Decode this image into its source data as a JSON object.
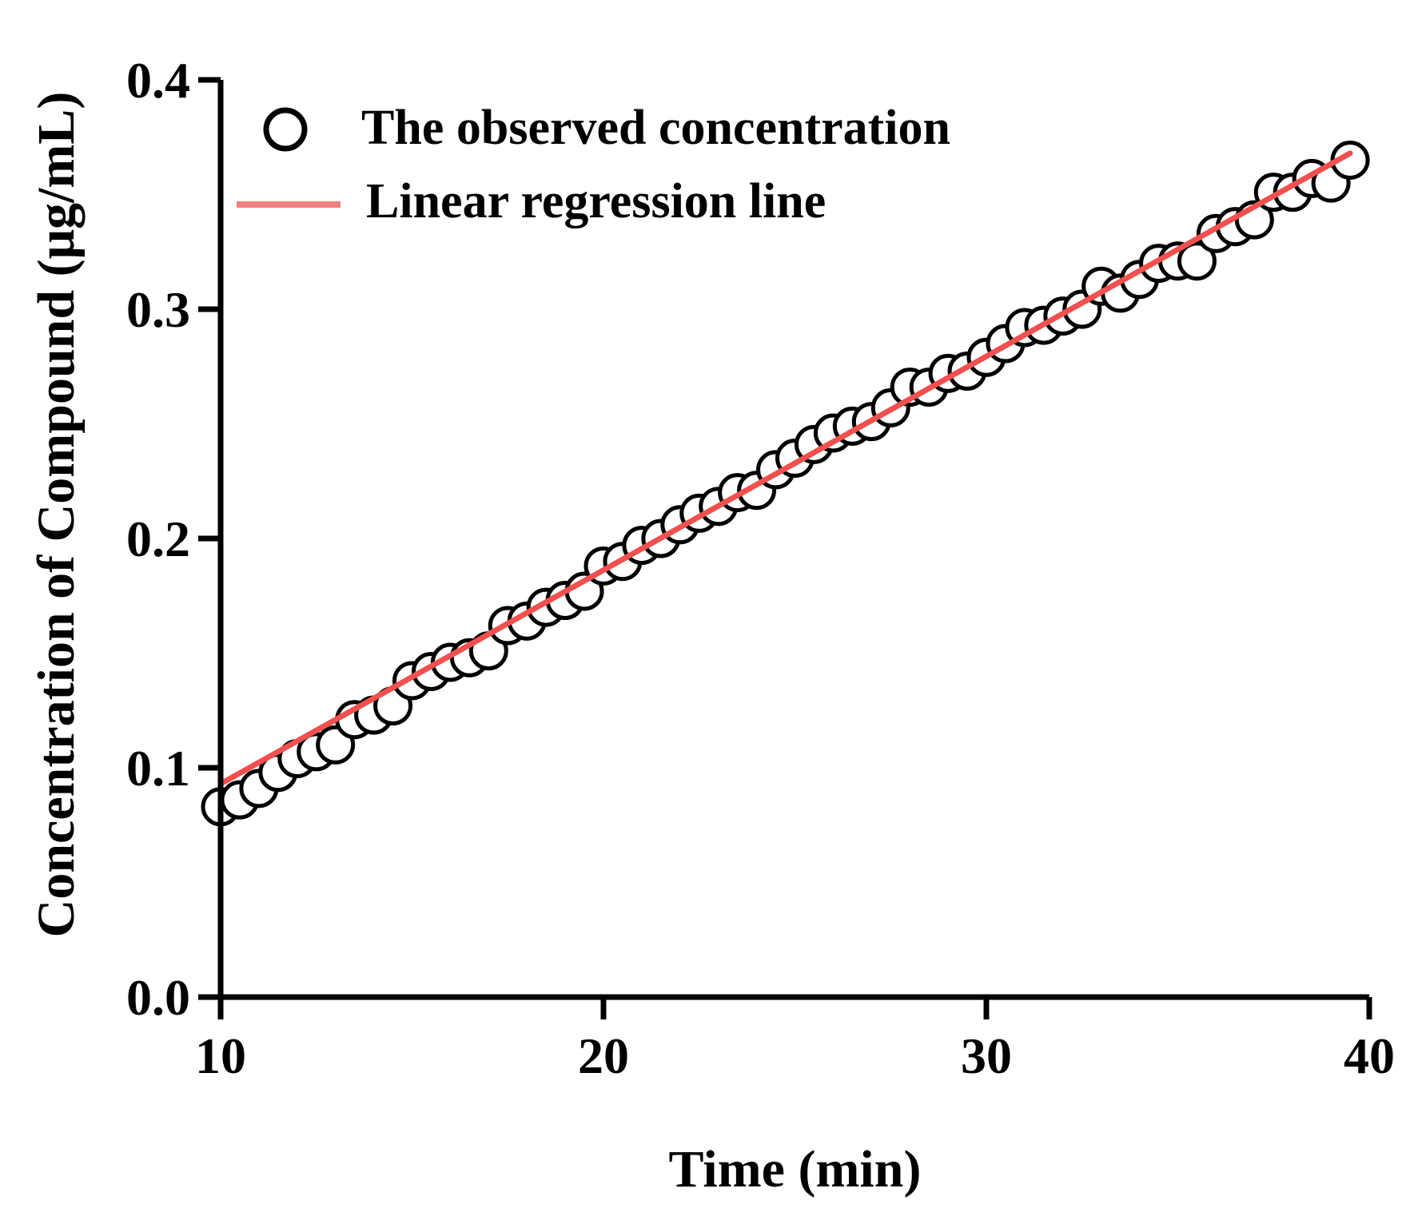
{
  "chart_data": {
    "type": "scatter",
    "title": "",
    "xlabel": "Time (min)",
    "ylabel": "Concentration of Compound (μg/mL)",
    "xlim": [
      10,
      40
    ],
    "ylim": [
      0.0,
      0.4
    ],
    "xticks": [
      10,
      20,
      30,
      40
    ],
    "xtick_labels": [
      "10",
      "20",
      "30",
      "40"
    ],
    "yticks": [
      0.0,
      0.1,
      0.2,
      0.3,
      0.4
    ],
    "ytick_labels": [
      "0.0",
      "0.1",
      "0.2",
      "0.3",
      "0.4"
    ],
    "grid": false,
    "legend_position": "top-left",
    "series": [
      {
        "name": "The observed concentration",
        "kind": "scatter",
        "marker": "open-circle",
        "color": "#000000",
        "x": [
          10.0,
          10.5,
          11.0,
          11.5,
          12.0,
          12.5,
          13.0,
          13.5,
          14.0,
          14.5,
          15.0,
          15.5,
          16.0,
          16.5,
          17.0,
          17.5,
          18.0,
          18.5,
          19.0,
          19.5,
          20.0,
          20.5,
          21.0,
          21.5,
          22.0,
          22.5,
          23.0,
          23.5,
          24.0,
          24.5,
          25.0,
          25.5,
          26.0,
          26.5,
          27.0,
          27.5,
          28.0,
          28.5,
          29.0,
          29.5,
          30.0,
          30.5,
          31.0,
          31.5,
          32.0,
          32.5,
          33.0,
          33.5,
          34.0,
          34.5,
          35.0,
          35.5,
          36.0,
          36.5,
          37.0,
          37.5,
          38.0,
          38.5,
          39.0,
          39.5
        ],
        "y": [
          0.083,
          0.086,
          0.091,
          0.098,
          0.104,
          0.107,
          0.11,
          0.121,
          0.123,
          0.127,
          0.138,
          0.142,
          0.146,
          0.148,
          0.151,
          0.162,
          0.164,
          0.17,
          0.173,
          0.177,
          0.188,
          0.19,
          0.197,
          0.2,
          0.206,
          0.211,
          0.214,
          0.22,
          0.221,
          0.23,
          0.235,
          0.241,
          0.246,
          0.249,
          0.251,
          0.257,
          0.266,
          0.266,
          0.272,
          0.273,
          0.279,
          0.285,
          0.292,
          0.293,
          0.297,
          0.3,
          0.31,
          0.307,
          0.313,
          0.32,
          0.321,
          0.321,
          0.333,
          0.336,
          0.339,
          0.351,
          0.351,
          0.357,
          0.355,
          0.365
        ]
      },
      {
        "name": "Linear regression line",
        "kind": "line",
        "color": "#f05050",
        "legend_color": "#f08080",
        "x": [
          10.0,
          39.5
        ],
        "y": [
          0.093,
          0.368
        ]
      }
    ]
  }
}
